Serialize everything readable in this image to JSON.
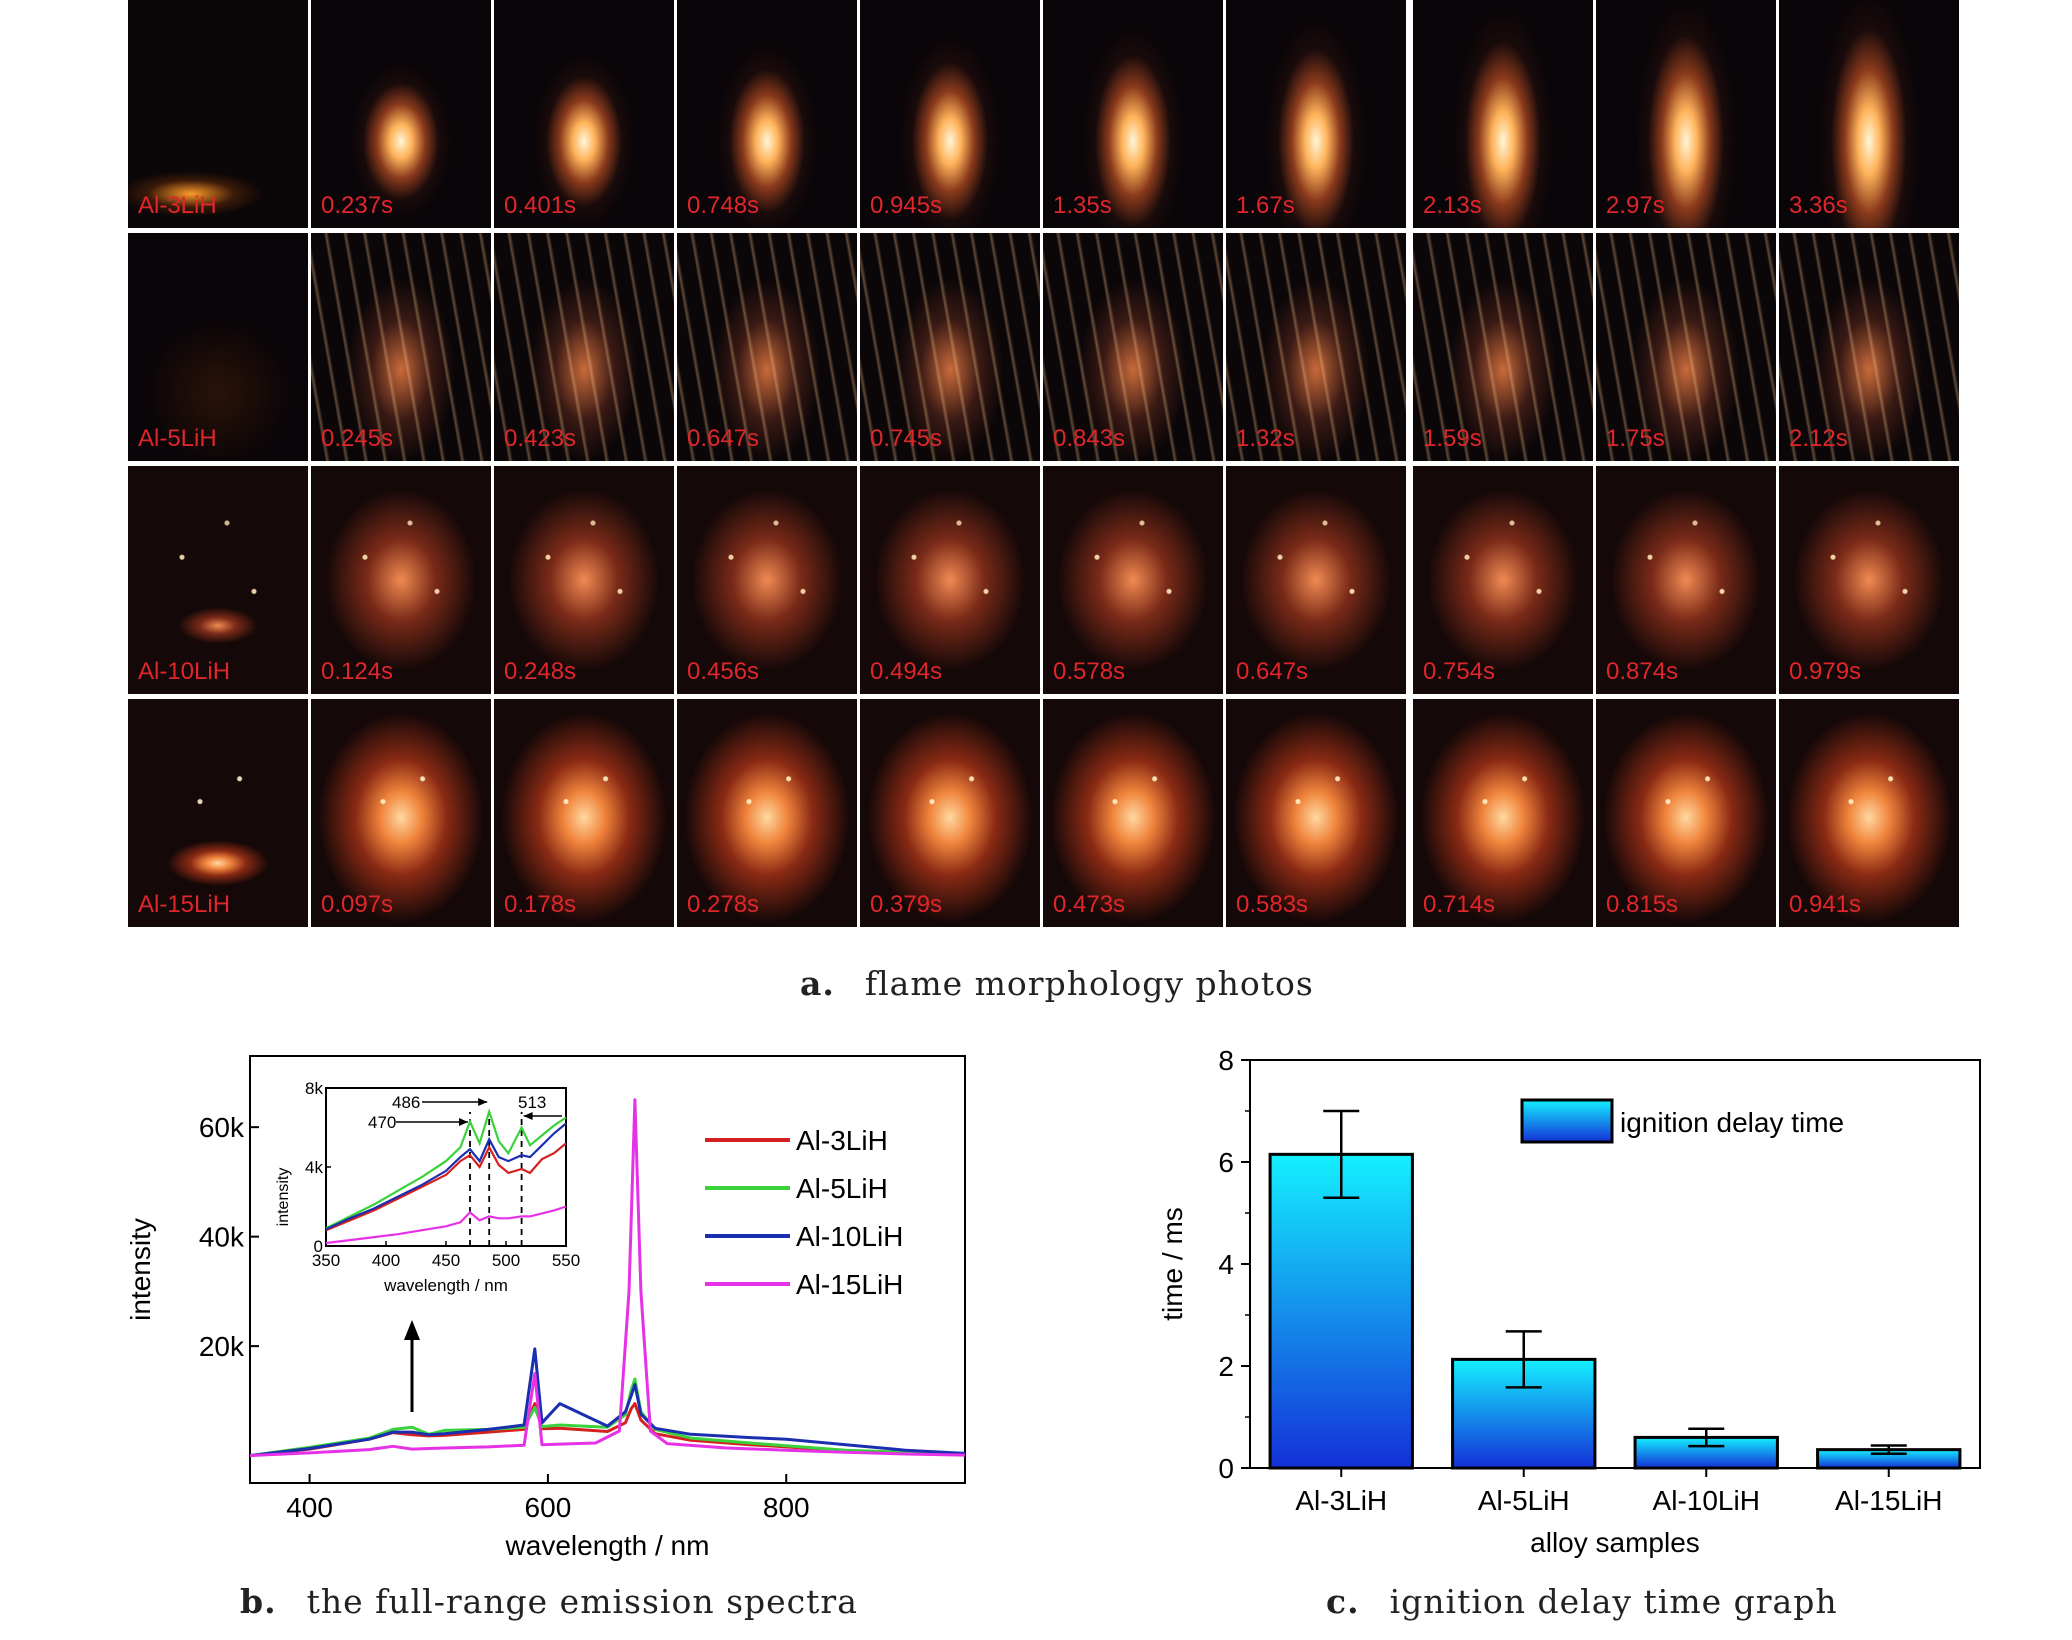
{
  "photos": {
    "rows": [
      {
        "sample": "Al-3LiH",
        "times": [
          "0.237s",
          "0.401s",
          "0.748s",
          "0.945s",
          "1.35s",
          "1.67s",
          "2.13s",
          "2.97s",
          "3.36s"
        ],
        "style": "flame"
      },
      {
        "sample": "Al-5LiH",
        "times": [
          "0.245s",
          "0.423s",
          "0.647s",
          "0.745s",
          "0.843s",
          "1.32s",
          "1.59s",
          "1.75s",
          "2.12s"
        ],
        "style": "streak"
      },
      {
        "sample": "Al-10LiH",
        "times": [
          "0.124s",
          "0.248s",
          "0.456s",
          "0.494s",
          "0.578s",
          "0.647s",
          "0.754s",
          "0.874s",
          "0.979s"
        ],
        "style": "spark"
      },
      {
        "sample": "Al-15LiH",
        "times": [
          "0.097s",
          "0.178s",
          "0.278s",
          "0.379s",
          "0.473s",
          "0.583s",
          "0.714s",
          "0.815s",
          "0.941s"
        ],
        "style": "burst"
      }
    ]
  },
  "captions": {
    "a_letter": "a.",
    "a_text": "flame morphology photos",
    "b_letter": "b.",
    "b_text": "the full-range emission spectra",
    "c_letter": "c.",
    "c_text": "ignition delay time graph"
  },
  "chart_data": [
    {
      "type": "line",
      "xlabel": "wavelength / nm",
      "ylabel": "intensity",
      "xlim": [
        350,
        950
      ],
      "ylim": [
        -5000,
        73000
      ],
      "xticks": [
        400,
        600,
        800
      ],
      "xtick_labels": [
        "400",
        "600",
        "800"
      ],
      "yticks": [
        20000,
        40000,
        60000
      ],
      "ytick_labels": [
        "20k",
        "40k",
        "60k"
      ],
      "legend_position": "top-right",
      "series": [
        {
          "name": "Al-3LiH",
          "color": "#d62020",
          "x": [
            350,
            400,
            450,
            470,
            486,
            500,
            513,
            550,
            580,
            589,
            595,
            610,
            650,
            665,
            670,
            673,
            678,
            690,
            720,
            770,
            800,
            850,
            900,
            950
          ],
          "y": [
            0,
            1200,
            3000,
            4200,
            3800,
            3600,
            3700,
            4300,
            4800,
            9500,
            4900,
            5000,
            4400,
            6000,
            8600,
            9500,
            6500,
            4000,
            2800,
            2000,
            1600,
            900,
            500,
            200
          ]
        },
        {
          "name": "Al-5LiH",
          "color": "#3ad23a",
          "x": [
            350,
            400,
            450,
            470,
            486,
            500,
            513,
            550,
            580,
            589,
            595,
            610,
            650,
            665,
            670,
            673,
            678,
            690,
            720,
            770,
            800,
            850,
            900,
            950
          ],
          "y": [
            0,
            1500,
            3200,
            4800,
            5200,
            3900,
            4600,
            4800,
            5200,
            8800,
            5300,
            5600,
            5200,
            7500,
            12000,
            14000,
            8000,
            4800,
            3200,
            2300,
            1800,
            1000,
            600,
            250
          ]
        },
        {
          "name": "Al-10LiH",
          "color": "#1a2eb0",
          "x": [
            350,
            400,
            450,
            470,
            486,
            500,
            513,
            550,
            580,
            589,
            595,
            610,
            650,
            665,
            670,
            673,
            678,
            690,
            720,
            770,
            800,
            850,
            900,
            950
          ],
          "y": [
            0,
            1300,
            3000,
            4300,
            4300,
            3800,
            4000,
            4800,
            5600,
            19500,
            6000,
            9500,
            5400,
            8000,
            11000,
            13000,
            7600,
            5000,
            3900,
            3300,
            3000,
            2000,
            1000,
            400
          ]
        },
        {
          "name": "Al-15LiH",
          "color": "#e632e6",
          "x": [
            350,
            400,
            450,
            470,
            486,
            500,
            513,
            550,
            580,
            589,
            595,
            610,
            640,
            660,
            668,
            673,
            678,
            686,
            700,
            750,
            800,
            850,
            900,
            950
          ],
          "y": [
            0,
            500,
            1100,
            1700,
            1200,
            1300,
            1400,
            1600,
            1900,
            15000,
            2000,
            2100,
            2300,
            4500,
            30000,
            65000,
            30000,
            4500,
            2200,
            1400,
            1000,
            600,
            300,
            100
          ]
        }
      ],
      "inset": {
        "xlabel": "wavelength / nm",
        "ylabel": "intensity",
        "xlim": [
          350,
          550
        ],
        "ylim": [
          0,
          8000
        ],
        "xticks": [
          350,
          400,
          450,
          500,
          550
        ],
        "xtick_labels": [
          "350",
          "400",
          "450",
          "500",
          "550"
        ],
        "yticks": [
          0,
          4000,
          8000
        ],
        "ytick_labels": [
          "0",
          "4k",
          "8k"
        ],
        "markers": [
          470,
          486,
          513
        ],
        "marker_labels": [
          "470",
          "486",
          "513"
        ],
        "series": [
          {
            "name": "Al-3LiH",
            "x": [
              350,
              370,
              390,
              410,
              430,
              450,
              462,
              470,
              478,
              486,
              494,
              502,
              513,
              520,
              530,
              540,
              550
            ],
            "y": [
              800,
              1300,
              1800,
              2400,
              3000,
              3600,
              4300,
              4600,
              4000,
              5000,
              4100,
              3700,
              3900,
              3700,
              4400,
              4700,
              5200
            ]
          },
          {
            "name": "Al-5LiH",
            "x": [
              350,
              370,
              390,
              410,
              430,
              450,
              462,
              470,
              478,
              486,
              494,
              502,
              513,
              520,
              530,
              540,
              550
            ],
            "y": [
              900,
              1500,
              2100,
              2800,
              3500,
              4300,
              5000,
              6300,
              5200,
              6800,
              5300,
              4700,
              6000,
              5100,
              5600,
              6100,
              6500
            ]
          },
          {
            "name": "Al-10LiH",
            "x": [
              350,
              370,
              390,
              410,
              430,
              450,
              462,
              470,
              478,
              486,
              494,
              502,
              513,
              520,
              530,
              540,
              550
            ],
            "y": [
              850,
              1400,
              1900,
              2500,
              3100,
              3800,
              4500,
              4900,
              4300,
              5400,
              4500,
              4300,
              4600,
              4500,
              5100,
              5700,
              6200
            ]
          },
          {
            "name": "Al-15LiH",
            "x": [
              350,
              370,
              390,
              410,
              430,
              450,
              462,
              470,
              478,
              486,
              494,
              502,
              513,
              520,
              530,
              540,
              550
            ],
            "y": [
              150,
              300,
              450,
              600,
              800,
              1000,
              1200,
              1700,
              1300,
              1500,
              1400,
              1400,
              1500,
              1500,
              1650,
              1800,
              2000
            ]
          }
        ]
      }
    },
    {
      "type": "bar",
      "xlabel": "alloy samples",
      "ylabel": "time / ms",
      "ylim": [
        0,
        8
      ],
      "yticks": [
        0,
        2,
        4,
        6,
        8
      ],
      "ytick_labels": [
        "0",
        "2",
        "4",
        "6",
        "8"
      ],
      "categories": [
        "Al-3LiH",
        "Al-5LiH",
        "Al-10LiH",
        "Al-15LiH"
      ],
      "series": [
        {
          "name": "ignition delay time",
          "values": [
            6.15,
            2.13,
            0.6,
            0.36
          ],
          "errors": [
            0.85,
            0.55,
            0.17,
            0.08
          ]
        }
      ],
      "legend_position": "top-right"
    }
  ]
}
